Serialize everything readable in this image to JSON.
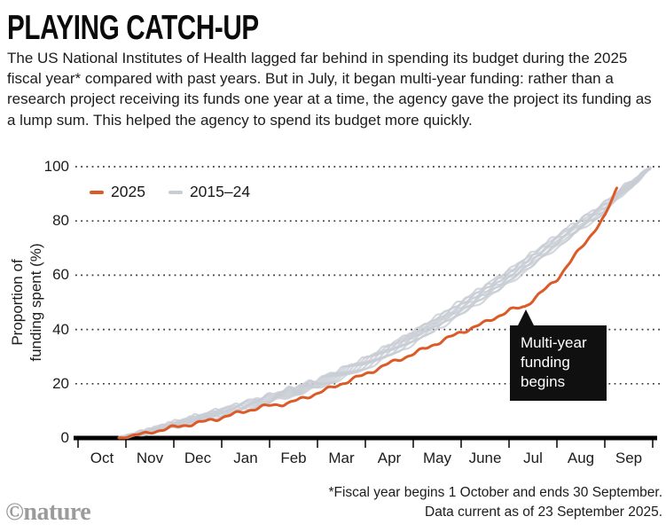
{
  "header": {
    "title": "PLAYING CATCH-UP",
    "description": "The US National Institutes of Health lagged far behind in spending its budget during the 2025 fiscal year* compared with past years. But in July, it began multi-year funding: rather than a research project receiving its funds one year at a time, the agency gave the project its funding as a lump sum. This helped the agency to spend its budget more quickly."
  },
  "chart_data": {
    "type": "line",
    "ylabel_lines": [
      "Proportion of",
      "funding spent (%)"
    ],
    "y_ticks": [
      0,
      20,
      40,
      60,
      80,
      100
    ],
    "ylim": [
      0,
      100
    ],
    "x_tick_labels": [
      "Oct",
      "Nov",
      "Dec",
      "Jan",
      "Feb",
      "Mar",
      "Apr",
      "May",
      "June",
      "Jul",
      "Aug",
      "Sep"
    ],
    "grid": "horizontal-dotted",
    "legend": [
      {
        "label": "2025",
        "color": "#DC5A28"
      },
      {
        "label": "2015–24",
        "color": "#C8CDD5"
      }
    ],
    "series": [
      {
        "name": "2025",
        "color": "#DC5A28",
        "x_months_from_oct": [
          0,
          0.85,
          1,
          1.5,
          2,
          2.5,
          3,
          3.5,
          4,
          4.4,
          5,
          5.5,
          6,
          6.5,
          7,
          7.5,
          8,
          8.5,
          9,
          9.33,
          9.5,
          10,
          10.5,
          11,
          11.26
        ],
        "values_pct": [
          0,
          0,
          0.5,
          2,
          4,
          5.5,
          7.5,
          10,
          12,
          12.8,
          16.5,
          20,
          23.5,
          27.5,
          31,
          35,
          39,
          42.5,
          47,
          48.5,
          51,
          58.5,
          70,
          81.5,
          92.5
        ]
      },
      {
        "name": "2015–24",
        "color": "#C8CDD5",
        "line_count": 10,
        "x_months_from_oct": [
          0,
          0.85,
          1,
          2,
          3,
          4,
          5,
          6,
          7,
          8,
          9,
          10,
          11,
          11.5,
          12
        ],
        "values_pct": [
          0,
          0,
          0.5,
          5,
          9.5,
          14.5,
          20,
          27.5,
          37,
          48,
          59.5,
          72.5,
          85,
          93,
          100
        ],
        "band_halfwidth_pct": [
          0,
          0,
          0.3,
          1,
          1.3,
          1.5,
          1.7,
          2,
          2.3,
          2.5,
          2.5,
          2.3,
          1.8,
          1.3,
          0.1
        ]
      }
    ],
    "annotation": {
      "text": "Multi-year funding begins",
      "points_to": {
        "x_months_from_oct": 9.33,
        "y_pct": 48
      }
    },
    "axis_color": "#000000",
    "gridline_color": "#3a3a3a"
  },
  "footer": {
    "footnote_line1": "*Fiscal year begins 1 October and ends 30 September.",
    "footnote_line2": "Data current as of 23 September 2025.",
    "credit": "©nature"
  }
}
